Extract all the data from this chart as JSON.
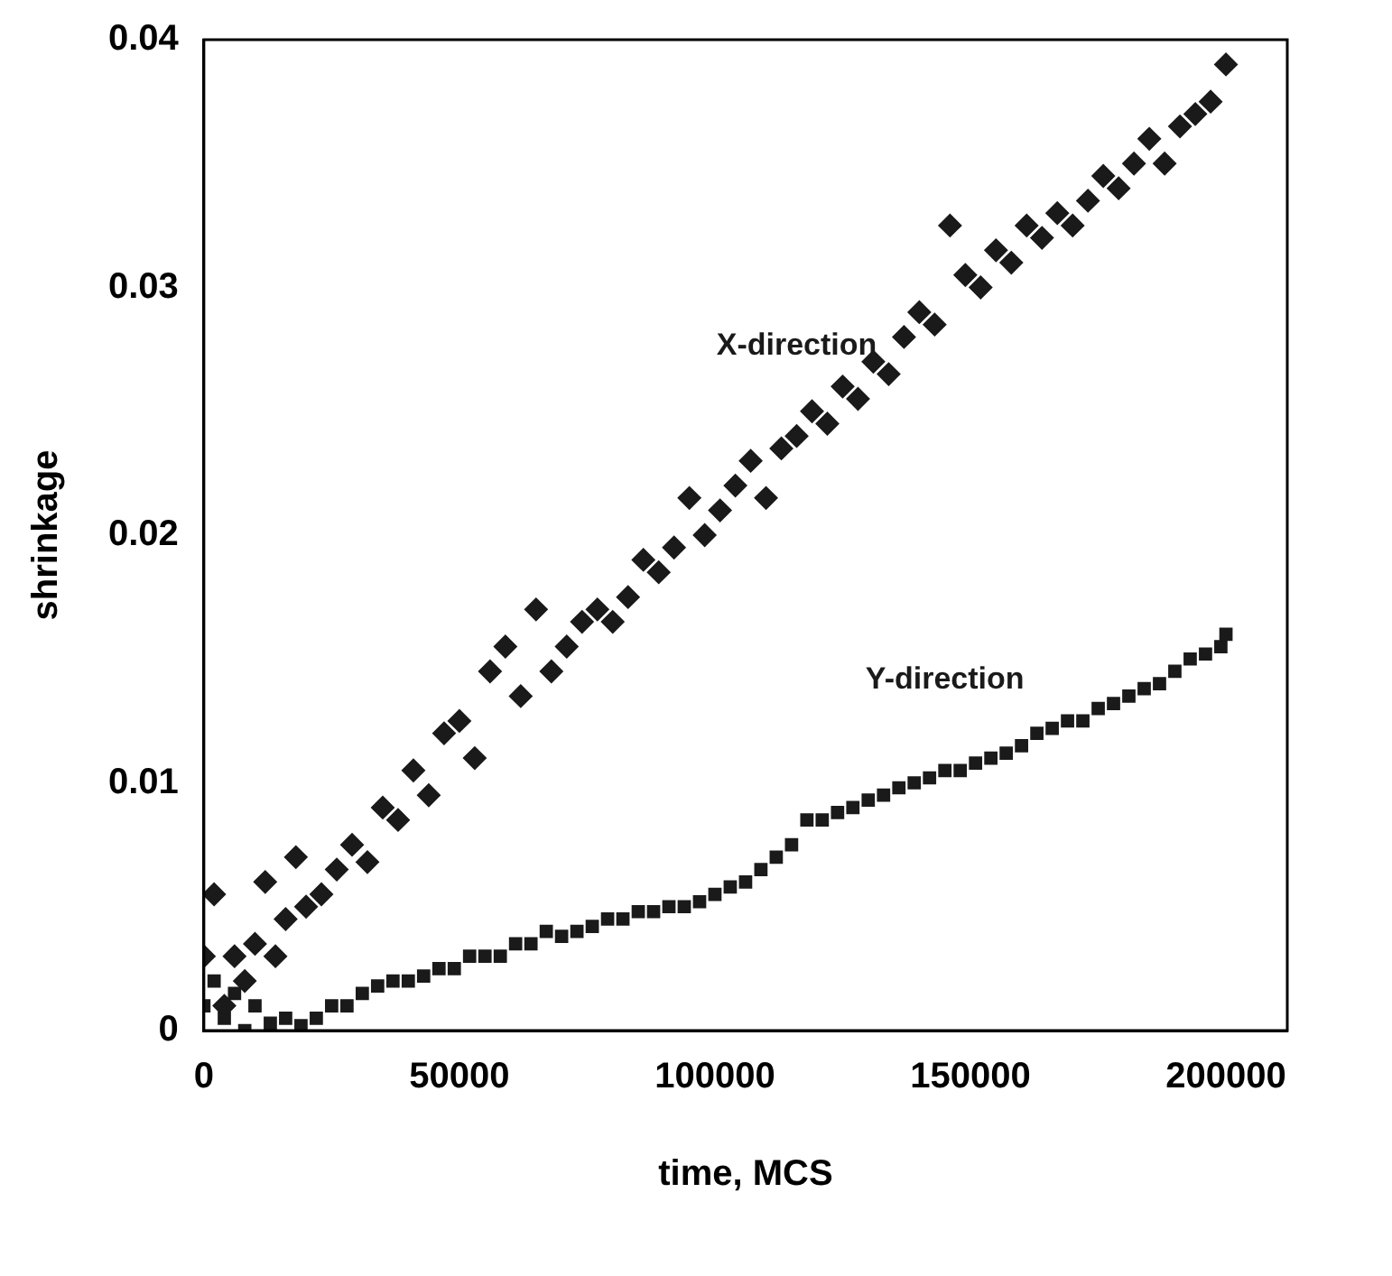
{
  "chart_data": {
    "type": "scatter",
    "xlabel": "time, MCS",
    "ylabel": "shrinkage",
    "xlim": [
      0,
      212000
    ],
    "ylim": [
      0,
      0.04
    ],
    "xticks": [
      0,
      50000,
      100000,
      150000,
      200000
    ],
    "yticks": [
      0,
      0.01,
      0.02,
      0.03,
      0.04
    ],
    "grid": false,
    "legend": false,
    "series": [
      {
        "name": "X-direction",
        "color": "#1a1a1a",
        "marker": "diamond",
        "x": [
          0,
          2000,
          4000,
          6000,
          8000,
          10000,
          12000,
          14000,
          16000,
          18000,
          20000,
          23000,
          26000,
          29000,
          32000,
          35000,
          38000,
          41000,
          44000,
          47000,
          50000,
          53000,
          56000,
          59000,
          62000,
          65000,
          68000,
          71000,
          74000,
          77000,
          80000,
          83000,
          86000,
          89000,
          92000,
          95000,
          98000,
          101000,
          104000,
          107000,
          110000,
          113000,
          116000,
          119000,
          122000,
          125000,
          128000,
          131000,
          134000,
          137000,
          140000,
          143000,
          146000,
          149000,
          152000,
          155000,
          158000,
          161000,
          164000,
          167000,
          170000,
          173000,
          176000,
          179000,
          182000,
          185000,
          188000,
          191000,
          194000,
          197000,
          200000
        ],
        "values": [
          0.003,
          0.0055,
          0.001,
          0.003,
          0.002,
          0.0035,
          0.006,
          0.003,
          0.0045,
          0.007,
          0.005,
          0.0055,
          0.0065,
          0.0075,
          0.0068,
          0.009,
          0.0085,
          0.0105,
          0.0095,
          0.012,
          0.0125,
          0.011,
          0.0145,
          0.0155,
          0.0135,
          0.017,
          0.0145,
          0.0155,
          0.0165,
          0.017,
          0.0165,
          0.0175,
          0.019,
          0.0185,
          0.0195,
          0.0215,
          0.02,
          0.021,
          0.022,
          0.023,
          0.0215,
          0.0235,
          0.024,
          0.025,
          0.0245,
          0.026,
          0.0255,
          0.027,
          0.0265,
          0.028,
          0.029,
          0.0285,
          0.0325,
          0.0305,
          0.03,
          0.0315,
          0.031,
          0.0325,
          0.032,
          0.033,
          0.0325,
          0.0335,
          0.0345,
          0.034,
          0.035,
          0.036,
          0.035,
          0.0365,
          0.037,
          0.0375,
          0.039
        ]
      },
      {
        "name": "Y-direction",
        "color": "#1a1a1a",
        "marker": "square",
        "x": [
          0,
          2000,
          4000,
          6000,
          8000,
          10000,
          13000,
          16000,
          19000,
          22000,
          25000,
          28000,
          31000,
          34000,
          37000,
          40000,
          43000,
          46000,
          49000,
          52000,
          55000,
          58000,
          61000,
          64000,
          67000,
          70000,
          73000,
          76000,
          79000,
          82000,
          85000,
          88000,
          91000,
          94000,
          97000,
          100000,
          103000,
          106000,
          109000,
          112000,
          115000,
          118000,
          121000,
          124000,
          127000,
          130000,
          133000,
          136000,
          139000,
          142000,
          145000,
          148000,
          151000,
          154000,
          157000,
          160000,
          163000,
          166000,
          169000,
          172000,
          175000,
          178000,
          181000,
          184000,
          187000,
          190000,
          193000,
          196000,
          199000,
          200000
        ],
        "values": [
          0.001,
          0.002,
          0.0005,
          0.0015,
          0,
          0.001,
          0.0003,
          0.0005,
          0.0002,
          0.0005,
          0.001,
          0.001,
          0.0015,
          0.0018,
          0.002,
          0.002,
          0.0022,
          0.0025,
          0.0025,
          0.003,
          0.003,
          0.003,
          0.0035,
          0.0035,
          0.004,
          0.0038,
          0.004,
          0.0042,
          0.0045,
          0.0045,
          0.0048,
          0.0048,
          0.005,
          0.005,
          0.0052,
          0.0055,
          0.0058,
          0.006,
          0.0065,
          0.007,
          0.0075,
          0.0085,
          0.0085,
          0.0088,
          0.009,
          0.0093,
          0.0095,
          0.0098,
          0.01,
          0.0102,
          0.0105,
          0.0105,
          0.0108,
          0.011,
          0.0112,
          0.0115,
          0.012,
          0.0122,
          0.0125,
          0.0125,
          0.013,
          0.0132,
          0.0135,
          0.0138,
          0.014,
          0.0145,
          0.015,
          0.0152,
          0.0155,
          0.016
        ]
      }
    ]
  }
}
